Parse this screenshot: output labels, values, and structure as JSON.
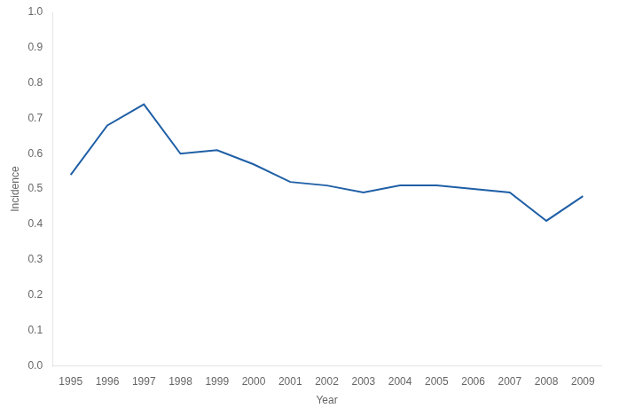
{
  "chart_data": {
    "type": "line",
    "xlabel": "Year",
    "ylabel": "Incidence",
    "x": [
      1995,
      1996,
      1997,
      1998,
      1999,
      2000,
      2001,
      2002,
      2003,
      2004,
      2005,
      2006,
      2007,
      2008,
      2009
    ],
    "values": [
      0.54,
      0.68,
      0.74,
      0.6,
      0.61,
      0.57,
      0.52,
      0.51,
      0.49,
      0.51,
      0.51,
      0.5,
      0.49,
      0.41,
      0.48
    ],
    "color": "#1F5FA6",
    "xlim": [
      1994.5,
      2009.5
    ],
    "ylim": [
      0.0,
      1.0
    ],
    "xticks": [
      1995,
      1996,
      1997,
      1998,
      1999,
      2000,
      2001,
      2002,
      2003,
      2004,
      2005,
      2006,
      2007,
      2008,
      2009
    ],
    "yticks": [
      {
        "value": 0.0,
        "label": "0.0"
      },
      0.1,
      0.2,
      0.3,
      0.4,
      0.5,
      0.6,
      0.7,
      0.8,
      0.9,
      {
        "value": 1.0,
        "label": "1.0"
      }
    ],
    "grid": false
  }
}
